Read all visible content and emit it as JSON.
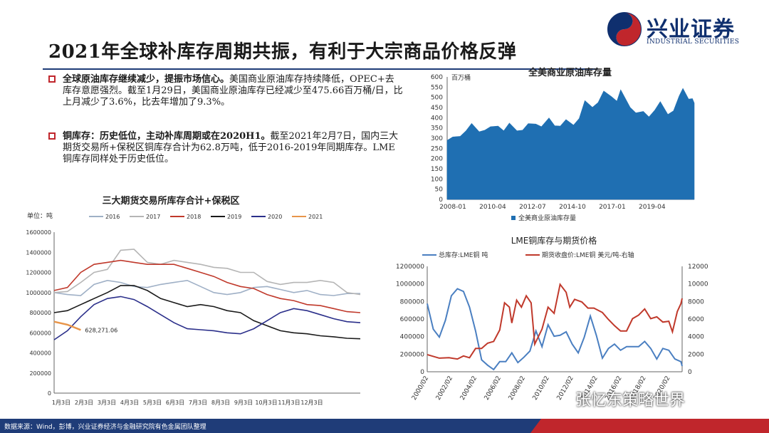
{
  "header": {
    "title": "2021年全球补库存周期共振，有利于大宗商品价格反弹",
    "logo_cn": "兴业证券",
    "logo_en": "INDUSTRIAL SECURITIES"
  },
  "bullets": [
    {
      "bold": "全球原油库存继续减少，提振市场信心。",
      "text": "美国商业原油库存持续降低，OPEC+去库存意愿强烈。截至1月29日，美国商业原油库存已经减少至475.66百万桶/日，比上月减少了3.6%，比去年增加了9.3%。"
    },
    {
      "bold": "铜库存：历史低位，主动补库周期或在2020H1。",
      "text": "截至2021年2月7日，国内三大期货交易所+保税区铜库存合计为62.8万吨，低于2016-2019年同期库存。LME铜库存同样处于历史低位。"
    }
  ],
  "footer": {
    "source": "数据来源：Wind，彭博，兴业证券经济与金融研究院有色金属团队整理"
  },
  "watermark": "张忆东策略世界",
  "colors": {
    "title_rule": "#1f3c78",
    "bullet_box": "#c0262c",
    "oil_fill": "#1f6fb2",
    "lme_stock": "#4a7fc1",
    "lme_price": "#c0392b",
    "footer_bar": "#1f3c78",
    "footer_accent": "#c0262c"
  },
  "chart_data": [
    {
      "id": "oil",
      "type": "area",
      "title": "全美商业原油库存量",
      "unit_label": "百万桶",
      "legend": [
        "全美商业原油库存量"
      ],
      "x_ticks": [
        "2008-01",
        "2010-04",
        "2012-07",
        "2014-10",
        "2017-01",
        "2019-04"
      ],
      "y_ticks": [
        "0",
        "50",
        "100",
        "150",
        "200",
        "250",
        "300",
        "350",
        "400",
        "450",
        "500",
        "550",
        "600"
      ],
      "ylim": [
        0,
        600
      ],
      "x_range": [
        2008.0,
        2021.1
      ],
      "series_points": [
        [
          2008.0,
          285
        ],
        [
          2008.3,
          310
        ],
        [
          2008.7,
          305
        ],
        [
          2009.0,
          340
        ],
        [
          2009.3,
          368
        ],
        [
          2009.7,
          335
        ],
        [
          2010.0,
          335
        ],
        [
          2010.3,
          360
        ],
        [
          2010.7,
          355
        ],
        [
          2011.0,
          340
        ],
        [
          2011.3,
          370
        ],
        [
          2011.7,
          340
        ],
        [
          2012.0,
          335
        ],
        [
          2012.3,
          375
        ],
        [
          2012.7,
          365
        ],
        [
          2013.0,
          360
        ],
        [
          2013.4,
          395
        ],
        [
          2013.7,
          365
        ],
        [
          2014.0,
          355
        ],
        [
          2014.3,
          395
        ],
        [
          2014.7,
          360
        ],
        [
          2015.0,
          400
        ],
        [
          2015.3,
          480
        ],
        [
          2015.7,
          455
        ],
        [
          2016.0,
          470
        ],
        [
          2016.3,
          535
        ],
        [
          2016.7,
          500
        ],
        [
          2017.0,
          485
        ],
        [
          2017.2,
          533
        ],
        [
          2017.7,
          455
        ],
        [
          2018.0,
          420
        ],
        [
          2018.4,
          435
        ],
        [
          2018.7,
          400
        ],
        [
          2019.0,
          440
        ],
        [
          2019.3,
          475
        ],
        [
          2019.7,
          420
        ],
        [
          2020.0,
          430
        ],
        [
          2020.3,
          510
        ],
        [
          2020.5,
          540
        ],
        [
          2020.8,
          495
        ],
        [
          2021.0,
          490
        ],
        [
          2021.1,
          476
        ]
      ]
    },
    {
      "id": "exchange",
      "type": "line",
      "title": "三大期货交易所库存合计+保税区",
      "unit_label": "单位：吨",
      "x_ticks": [
        "1月3日",
        "2月3日",
        "3月3日",
        "4月3日",
        "5月3日",
        "6月3日",
        "7月3日",
        "8月3日",
        "9月3日",
        "10月3日",
        "11月3日",
        "12月3日"
      ],
      "y_ticks": [
        "0",
        "200000",
        "400000",
        "600000",
        "800000",
        "1000000",
        "1200000",
        "1400000",
        "1600000"
      ],
      "ylim": [
        0,
        1600000
      ],
      "annotation": "628,271.06",
      "series": [
        {
          "name": "2016",
          "color": "#9fb0c6",
          "values": [
            1000000,
            980000,
            970000,
            1080000,
            1120000,
            1100000,
            1060000,
            1050000,
            1080000,
            1100000,
            1120000,
            1060000,
            1000000,
            980000,
            1000000,
            1050000,
            1060000,
            1030000,
            1000000,
            1020000,
            980000,
            970000,
            990000,
            990000
          ]
        },
        {
          "name": "2017",
          "color": "#b5b5b5",
          "values": [
            1000000,
            1010000,
            1100000,
            1200000,
            1230000,
            1420000,
            1430000,
            1300000,
            1280000,
            1320000,
            1300000,
            1280000,
            1250000,
            1240000,
            1200000,
            1200000,
            1110000,
            1080000,
            1100000,
            1100000,
            1120000,
            1100000,
            1000000,
            980000
          ]
        },
        {
          "name": "2018",
          "color": "#c0392b",
          "values": [
            1020000,
            1050000,
            1200000,
            1280000,
            1300000,
            1320000,
            1300000,
            1280000,
            1280000,
            1280000,
            1240000,
            1200000,
            1160000,
            1100000,
            1060000,
            1040000,
            980000,
            940000,
            920000,
            880000,
            870000,
            840000,
            810000,
            800000
          ]
        },
        {
          "name": "2019",
          "color": "#1a1a1a",
          "values": [
            800000,
            820000,
            880000,
            940000,
            1000000,
            1070000,
            1070000,
            1020000,
            940000,
            900000,
            860000,
            880000,
            860000,
            820000,
            800000,
            720000,
            670000,
            620000,
            600000,
            590000,
            570000,
            560000,
            545000,
            540000
          ]
        },
        {
          "name": "2020",
          "color": "#2b2f8a",
          "values": [
            530000,
            620000,
            760000,
            880000,
            940000,
            960000,
            930000,
            860000,
            780000,
            700000,
            640000,
            630000,
            620000,
            600000,
            590000,
            640000,
            720000,
            800000,
            840000,
            820000,
            780000,
            740000,
            710000,
            700000
          ]
        },
        {
          "name": "2021",
          "color": "#e8954a",
          "values": [
            710000,
            680000,
            628271
          ]
        }
      ]
    },
    {
      "id": "lme",
      "type": "line",
      "title": "LME铜库存与期货价格",
      "legend": [
        "总库存:LME铜  吨",
        "期货收盘价:LME铜  美元/吨-右轴"
      ],
      "x_ticks": [
        "2000/02",
        "2002/02",
        "2004/02",
        "2006/02",
        "2008/02",
        "2010/02",
        "2012/02",
        "2014/02",
        "2016/02",
        "2018/02",
        "2020/02"
      ],
      "y_ticks_left": [
        "0",
        "200000",
        "400000",
        "600000",
        "800000",
        "1000000",
        "1200000"
      ],
      "y_ticks_right": [
        "0",
        "2000",
        "4000",
        "6000",
        "8000",
        "10000",
        "12000"
      ],
      "ylim_left": [
        0,
        1200000
      ],
      "ylim_right": [
        0,
        12000
      ],
      "x_range": [
        2000.0,
        2021.1
      ],
      "series": [
        {
          "name": "总库存:LME铜  吨",
          "axis": "left",
          "color": "#4a7fc1",
          "points": [
            [
              2000.0,
              760000
            ],
            [
              2000.5,
              500000
            ],
            [
              2001.0,
              380000
            ],
            [
              2001.5,
              600000
            ],
            [
              2002.0,
              850000
            ],
            [
              2002.5,
              960000
            ],
            [
              2003.0,
              900000
            ],
            [
              2003.5,
              750000
            ],
            [
              2004.0,
              450000
            ],
            [
              2004.5,
              150000
            ],
            [
              2005.0,
              60000
            ],
            [
              2005.5,
              40000
            ],
            [
              2006.0,
              100000
            ],
            [
              2006.5,
              130000
            ],
            [
              2007.0,
              200000
            ],
            [
              2007.5,
              120000
            ],
            [
              2008.0,
              150000
            ],
            [
              2008.5,
              250000
            ],
            [
              2009.0,
              450000
            ],
            [
              2009.5,
              300000
            ],
            [
              2010.0,
              520000
            ],
            [
              2010.5,
              420000
            ],
            [
              2011.0,
              400000
            ],
            [
              2011.5,
              470000
            ],
            [
              2012.0,
              300000
            ],
            [
              2012.5,
              230000
            ],
            [
              2013.0,
              380000
            ],
            [
              2013.5,
              650000
            ],
            [
              2014.0,
              400000
            ],
            [
              2014.5,
              170000
            ],
            [
              2015.0,
              250000
            ],
            [
              2015.5,
              330000
            ],
            [
              2016.0,
              230000
            ],
            [
              2016.5,
              300000
            ],
            [
              2017.0,
              270000
            ],
            [
              2017.5,
              300000
            ],
            [
              2018.0,
              330000
            ],
            [
              2018.5,
              280000
            ],
            [
              2019.0,
              130000
            ],
            [
              2019.5,
              280000
            ],
            [
              2020.0,
              230000
            ],
            [
              2020.5,
              160000
            ],
            [
              2021.0,
              100000
            ],
            [
              2021.1,
              80000
            ]
          ]
        },
        {
          "name": "期货收盘价:LME铜  美元/吨-右轴",
          "axis": "right",
          "color": "#c0392b",
          "points": [
            [
              2000.0,
              1800
            ],
            [
              2001.0,
              1700
            ],
            [
              2001.8,
              1450
            ],
            [
              2002.5,
              1600
            ],
            [
              2003.0,
              1650
            ],
            [
              2003.5,
              1750
            ],
            [
              2004.0,
              2500
            ],
            [
              2004.5,
              2800
            ],
            [
              2005.0,
              3100
            ],
            [
              2005.5,
              3600
            ],
            [
              2006.0,
              4600
            ],
            [
              2006.4,
              8000
            ],
            [
              2006.8,
              7200
            ],
            [
              2007.0,
              5700
            ],
            [
              2007.4,
              8000
            ],
            [
              2007.8,
              7500
            ],
            [
              2008.2,
              8500
            ],
            [
              2008.6,
              8000
            ],
            [
              2008.9,
              3000
            ],
            [
              2009.5,
              5000
            ],
            [
              2010.0,
              7200
            ],
            [
              2010.5,
              6800
            ],
            [
              2011.0,
              9800
            ],
            [
              2011.5,
              9200
            ],
            [
              2011.8,
              7200
            ],
            [
              2012.2,
              8400
            ],
            [
              2012.8,
              7800
            ],
            [
              2013.3,
              7400
            ],
            [
              2013.8,
              7100
            ],
            [
              2014.5,
              6900
            ],
            [
              2015.0,
              5800
            ],
            [
              2015.5,
              5400
            ],
            [
              2016.0,
              4500
            ],
            [
              2016.5,
              4800
            ],
            [
              2017.0,
              5900
            ],
            [
              2017.5,
              6600
            ],
            [
              2018.0,
              7000
            ],
            [
              2018.5,
              6200
            ],
            [
              2019.0,
              6100
            ],
            [
              2019.5,
              5800
            ],
            [
              2020.0,
              5600
            ],
            [
              2020.3,
              4700
            ],
            [
              2020.7,
              6700
            ],
            [
              2021.0,
              7900
            ],
            [
              2021.1,
              8200
            ]
          ]
        }
      ]
    }
  ]
}
